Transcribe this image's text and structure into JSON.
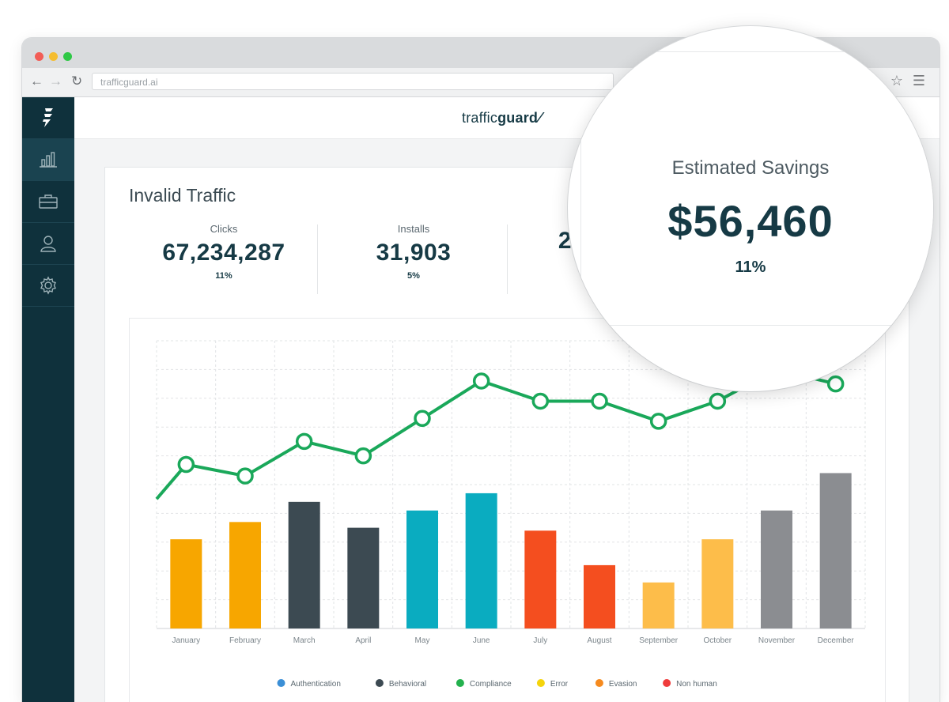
{
  "browser": {
    "url": "trafficguard.ai"
  },
  "app": {
    "logo_light": "traffic",
    "logo_bold": "guard"
  },
  "sidebar": {
    "items": [
      {
        "icon": "bolt-icon"
      },
      {
        "icon": "bar-chart-icon",
        "active": true
      },
      {
        "icon": "briefcase-icon"
      },
      {
        "icon": "user-icon"
      },
      {
        "icon": "gear-icon"
      }
    ]
  },
  "card": {
    "title": "Invalid Traffic",
    "stats": [
      {
        "label": "Clicks",
        "value": "67,234,287",
        "pct": "11%"
      },
      {
        "label": "Installs",
        "value": "31,903",
        "pct": "5%"
      },
      {
        "label": "",
        "value": "23",
        "pct": ""
      }
    ]
  },
  "magnifier": {
    "label": "Estimated Savings",
    "value": "$56,460",
    "pct": "11%"
  },
  "legend": [
    {
      "label": "Authentication",
      "color": "#3b8fd6"
    },
    {
      "label": "Behavioral",
      "color": "#3c4a52"
    },
    {
      "label": "Compliance",
      "color": "#23b14d"
    },
    {
      "label": "Error",
      "color": "#f5d40c"
    },
    {
      "label": "Evasion",
      "color": "#f68a1e"
    },
    {
      "label": "Non human",
      "color": "#ef3b3b"
    }
  ],
  "chart_data": {
    "type": "bar",
    "categories": [
      "January",
      "February",
      "March",
      "April",
      "May",
      "June",
      "July",
      "August",
      "September",
      "October",
      "November",
      "December"
    ],
    "bar_values": [
      31,
      37,
      44,
      35,
      41,
      47,
      34,
      22,
      16,
      31,
      41,
      54
    ],
    "bar_colors": [
      "#f7a600",
      "#f7a600",
      "#3c4a52",
      "#3c4a52",
      "#0aacc0",
      "#0aacc0",
      "#f44e1f",
      "#f44e1f",
      "#fdbd4a",
      "#fdbd4a",
      "#8b8d91",
      "#8b8d91"
    ],
    "line_values": [
      57,
      53,
      65,
      60,
      73,
      86,
      79,
      79,
      72,
      79,
      90,
      85
    ],
    "line_start": 45,
    "line_color": "#1aa85a",
    "ylim": [
      0,
      100
    ],
    "grid": true
  }
}
